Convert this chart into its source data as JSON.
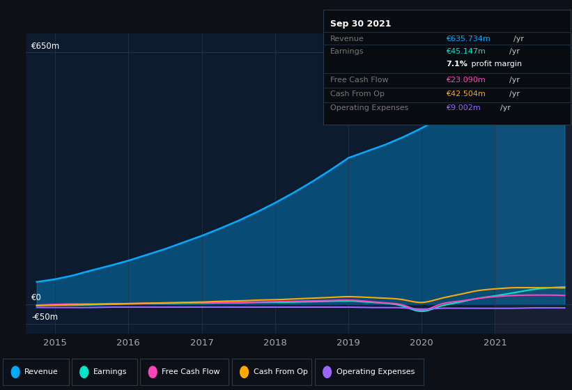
{
  "bg_color": "#0d1117",
  "plot_bg_color": "#0d1b2e",
  "grid_color": "#253545",
  "years_x": [
    2014.75,
    2015.0,
    2015.25,
    2015.5,
    2015.75,
    2016.0,
    2016.25,
    2016.5,
    2016.75,
    2017.0,
    2017.25,
    2017.5,
    2017.75,
    2018.0,
    2018.25,
    2018.5,
    2018.75,
    2019.0,
    2019.25,
    2019.5,
    2019.75,
    2020.0,
    2020.25,
    2020.5,
    2020.75,
    2021.0,
    2021.25,
    2021.5,
    2021.75,
    2021.95
  ],
  "revenue": [
    58,
    65,
    75,
    88,
    100,
    113,
    128,
    143,
    160,
    177,
    196,
    216,
    238,
    262,
    288,
    316,
    346,
    378,
    395,
    412,
    432,
    455,
    480,
    510,
    545,
    577,
    600,
    618,
    630,
    636
  ],
  "earnings": [
    -3,
    -2,
    -2,
    -1,
    0,
    1,
    2,
    2,
    3,
    3,
    4,
    4,
    5,
    5,
    6,
    7,
    8,
    9,
    6,
    3,
    -5,
    -18,
    -5,
    5,
    15,
    22,
    30,
    38,
    43,
    45
  ],
  "free_cash_flow": [
    -2,
    0,
    1,
    1,
    2,
    2,
    3,
    3,
    4,
    4,
    5,
    5,
    6,
    7,
    8,
    9,
    10,
    11,
    8,
    4,
    -2,
    -15,
    0,
    8,
    15,
    20,
    23,
    24,
    24,
    23
  ],
  "cash_from_op": [
    -3,
    -2,
    -1,
    0,
    1,
    2,
    3,
    4,
    5,
    6,
    8,
    9,
    11,
    12,
    14,
    16,
    18,
    20,
    18,
    16,
    12,
    5,
    15,
    25,
    35,
    40,
    43,
    43,
    43,
    42.5
  ],
  "operating_expenses": [
    -8,
    -8,
    -8,
    -8,
    -7,
    -7,
    -7,
    -7,
    -7,
    -7,
    -7,
    -7,
    -7,
    -7,
    -7,
    -7,
    -7,
    -7,
    -8,
    -8,
    -9,
    -12,
    -10,
    -10,
    -10,
    -10,
    -10,
    -9,
    -9,
    -9
  ],
  "revenue_color": "#00aaff",
  "earnings_color": "#00e5cc",
  "fcf_color": "#ff44bb",
  "cashfromop_color": "#ffaa00",
  "opex_color": "#9966ff",
  "ylabel_650": "€650m",
  "ylabel_0": "€0",
  "ylabel_neg50": "-€50m",
  "xlim": [
    2014.6,
    2022.05
  ],
  "ylim": [
    -75,
    700
  ],
  "shaded_region_start": 2021.0,
  "shaded_region_end": 2022.05,
  "xticks": [
    2015,
    2016,
    2017,
    2018,
    2019,
    2020,
    2021
  ],
  "legend_items": [
    "Revenue",
    "Earnings",
    "Free Cash Flow",
    "Cash From Op",
    "Operating Expenses"
  ],
  "legend_colors": [
    "#00aaff",
    "#00e5cc",
    "#ff44bb",
    "#ffaa00",
    "#9966ff"
  ],
  "info_title": "Sep 30 2021",
  "info_rows": [
    {
      "label": "Revenue",
      "value": "€635.734m",
      "vcolor": "#00aaff"
    },
    {
      "label": "Earnings",
      "value": "€45.147m",
      "vcolor": "#00e5cc"
    },
    {
      "label": "",
      "value": "7.1% profit margin",
      "vcolor": "white"
    },
    {
      "label": "Free Cash Flow",
      "value": "€23.090m",
      "vcolor": "#ff44bb"
    },
    {
      "label": "Cash From Op",
      "value": "€42.504m",
      "vcolor": "#ffaa00"
    },
    {
      "label": "Operating Expenses",
      "value": "€9.002m",
      "vcolor": "#9966ff"
    }
  ]
}
